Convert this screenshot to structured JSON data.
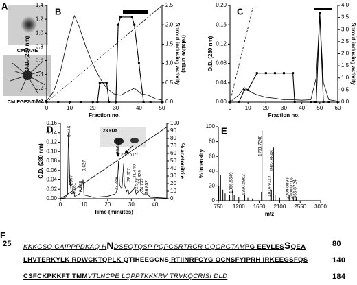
{
  "panel_a": {
    "label": "A",
    "captions": [
      "CM MAE",
      "CM FGF2-T-MAE"
    ]
  },
  "chart_data": [
    {
      "type": "line",
      "panel": "B",
      "xlabel": "Fraction no.",
      "ylabel": "O.D. (280 nm)",
      "y2label": [
        "Sprout inducing activity",
        "(relative units)"
      ],
      "xlim": [
        0,
        50
      ],
      "xticks": [
        0,
        10,
        20,
        30,
        40,
        50
      ],
      "ylim": [
        0,
        1.4
      ],
      "yticks": [
        {
          "value": 0,
          "label": "0.0"
        },
        0.2,
        0.4,
        0.6,
        0.8,
        {
          "value": 1,
          "label": "1.0"
        },
        1.2,
        1.4
      ],
      "y2lim": [
        0,
        2.5
      ],
      "y2ticks": [
        {
          "value": 0,
          "label": "0.0"
        },
        0.5,
        {
          "value": 1,
          "label": "1.0"
        },
        1.5,
        {
          "value": 2,
          "label": "2.0"
        },
        2.5
      ],
      "series": [
        {
          "x": [
            0,
            3,
            6,
            9,
            12,
            14,
            17,
            20,
            23,
            26,
            29,
            32,
            35,
            38,
            41,
            44,
            47,
            50
          ],
          "values": [
            0.02,
            0.15,
            0.45,
            0.9,
            1.25,
            1.1,
            0.8,
            0.55,
            0.35,
            0.2,
            0.12,
            0.1,
            0.15,
            0.2,
            0.12,
            0.1,
            0.05,
            0.03
          ],
          "color": "#000000"
        },
        {
          "x": [
            0,
            50
          ],
          "values": [
            0,
            2.5
          ],
          "axis": "y2",
          "dash": true,
          "color": "#000000"
        },
        {
          "x": [
            0,
            5,
            10,
            15,
            20,
            22,
            23,
            26,
            27,
            30,
            31,
            32,
            37,
            38,
            40,
            42,
            45,
            50
          ],
          "values": [
            0,
            0,
            0,
            0,
            0,
            0,
            0.5,
            0.5,
            0,
            0,
            2.0,
            2.2,
            2.2,
            2.0,
            1.0,
            0,
            0,
            0
          ],
          "axis": "y2",
          "markers": true,
          "color": "#000000"
        }
      ]
    },
    {
      "type": "line",
      "panel": "C",
      "xlabel": "Fraction no.",
      "ylabel": "O.D. (280 nm)",
      "y2label": [
        "Sprout inducing activity",
        "(relative units)"
      ],
      "xlim": [
        0,
        60
      ],
      "xticks": [
        0,
        10,
        20,
        30,
        40,
        50,
        60
      ],
      "ylim": [
        0,
        0.2
      ],
      "yticks": [
        {
          "value": 0,
          "label": "0.00"
        },
        0.04,
        0.08,
        0.12,
        0.16,
        {
          "value": 0.2,
          "label": "0.20"
        }
      ],
      "y2lim": [
        0,
        4
      ],
      "y2ticks": [
        {
          "value": 0,
          "label": "0.0"
        },
        0.5,
        {
          "value": 1,
          "label": "1.0"
        },
        1.5,
        {
          "value": 2,
          "label": "2.0"
        },
        2.5,
        {
          "value": 3,
          "label": "3.0"
        },
        3.5,
        {
          "value": 4,
          "label": "4.0"
        }
      ],
      "series": [
        {
          "x": [
            0,
            5,
            8,
            10,
            12,
            15,
            20,
            25,
            30,
            35,
            40,
            45,
            48,
            50,
            52,
            55,
            60
          ],
          "values": [
            0,
            0.015,
            0.03,
            0.025,
            0.02,
            0.015,
            0.01,
            0.008,
            0.005,
            0.005,
            0.004,
            0.005,
            0.05,
            0.18,
            0.04,
            0.005,
            0.002
          ],
          "color": "#000000"
        },
        {
          "x": [
            0,
            13
          ],
          "values": [
            0,
            4
          ],
          "axis": "y2",
          "dash": true,
          "color": "#000000"
        },
        {
          "x": [
            0,
            5,
            8,
            10,
            15,
            20,
            25,
            30,
            35,
            36,
            45,
            47,
            48,
            50,
            52,
            55,
            60
          ],
          "values": [
            0,
            0,
            0.5,
            0.5,
            1.2,
            1.2,
            1.2,
            1.2,
            1.2,
            0,
            0,
            0,
            0,
            3.7,
            0,
            0,
            0
          ],
          "axis": "y2",
          "markers": true,
          "color": "#000000"
        }
      ]
    },
    {
      "type": "line",
      "panel": "D",
      "xlabel": "Time (minutes)",
      "ylabel": "O.D. (280 nm)",
      "y2label": [
        "% acetonitrile"
      ],
      "xlim": [
        0,
        45
      ],
      "xticks": [
        0,
        10,
        20,
        30,
        40
      ],
      "ylim": [
        0,
        0.16
      ],
      "yticks": [
        {
          "value": 0,
          "label": "0.00"
        },
        0.02,
        0.04,
        0.06,
        0.08,
        {
          "value": 0.1,
          "label": "0.10"
        },
        0.12,
        0.14,
        0.16
      ],
      "y2lim": [
        0,
        100
      ],
      "y2ticks": [
        0,
        10,
        20,
        30,
        40,
        50,
        60,
        70,
        80,
        90,
        100
      ],
      "inset_label": "28 kDa",
      "annotations": [
        "3.446",
        "4.097",
        "5.681",
        "8.838",
        "9.627",
        "23.748",
        "24.640",
        "26.751**",
        "28.657",
        "31.440",
        "32.538",
        "33.929",
        "34.732",
        "36.852"
      ],
      "series": [
        {
          "x": [
            0,
            2,
            3,
            3.4,
            4,
            4.1,
            4.6,
            5.7,
            6,
            8,
            8.8,
            9.6,
            10,
            14,
            20,
            23,
            23.7,
            24,
            24.6,
            25,
            26,
            26.75,
            27,
            28,
            28.6,
            29,
            30,
            31,
            31.4,
            32,
            33.9,
            34,
            35,
            36.8,
            38,
            45
          ],
          "values": [
            0,
            0.002,
            0.01,
            0.14,
            0.03,
            0.04,
            0.01,
            0.015,
            0.005,
            0.01,
            0.02,
            0.04,
            0.008,
            0.003,
            0.005,
            0.01,
            0.015,
            0.02,
            0.08,
            0.03,
            0.02,
            0.075,
            0.03,
            0.015,
            0.02,
            0.01,
            0.015,
            0.02,
            0.025,
            0.01,
            0.02,
            0.015,
            0.01,
            0.01,
            0.003,
            0.001
          ],
          "color": "#000000"
        },
        {
          "x": [
            0,
            5,
            45
          ],
          "values": [
            0,
            10,
            95
          ],
          "axis": "y2",
          "color": "#000000"
        }
      ]
    },
    {
      "type": "stem",
      "panel": "E",
      "xlabel": "m/z",
      "ylabel": "% Intensity",
      "xlim": [
        750,
        3000
      ],
      "xticks": [
        750,
        1200,
        1650,
        2100,
        2550,
        3000
      ],
      "ylim": [
        0,
        100
      ],
      "yticks": [
        0,
        20,
        40,
        60,
        80,
        100
      ],
      "annotations": [
        "1711.7248",
        "1963.8848",
        "1066.5549",
        "1330.5862",
        "1916.9113",
        "2309.0893",
        "2400.0716",
        "2466.8724"
      ],
      "series": [
        {
          "x": [
            760,
            800,
            850,
            900,
            1000,
            1066.5,
            1100,
            1200,
            1330.6,
            1400,
            1500,
            1697.8,
            1711.7,
            1800,
            1916.9,
            1963.9,
            2000,
            2100,
            2309,
            2400,
            2467
          ],
          "values": [
            20,
            35,
            15,
            10,
            8,
            15,
            8,
            5,
            8,
            4,
            3,
            12,
            95,
            10,
            15,
            72,
            8,
            4,
            8,
            6,
            5
          ],
          "color": "#000000"
        }
      ]
    }
  ],
  "sequence": {
    "label": "F",
    "lines": [
      {
        "start": "25",
        "end": "80",
        "segments": [
          {
            "text": "KKKGSQ GAIPPPDKAQ H",
            "style": "italic-underline"
          },
          {
            "text": "N",
            "style": "big"
          },
          {
            "text": "DSEQTQSP PQPGSRTRGR GQGRGTAM",
            "style": "italic-underline"
          },
          {
            "text": "PG EEVLES",
            "style": "bold-underline"
          },
          {
            "text": "S",
            "style": "big"
          },
          {
            "text": "QEA",
            "style": "bold-underline"
          }
        ]
      },
      {
        "start": "",
        "end": "140",
        "segments": [
          {
            "text": "LHVTERKYLK RDWCKTQPLK ",
            "style": "bold-underline"
          },
          {
            "text": "QTIHEEGCNS",
            "style": "bold"
          },
          {
            "text": " RTIINRFCYG QCNSFYIPRH IRKEEGSFQS",
            "style": "bold-underline"
          }
        ]
      },
      {
        "start": "",
        "end": "184",
        "segments": [
          {
            "text": "CSFCKPKKFT TMM",
            "style": "bold-underline"
          },
          {
            "text": "VTLNCPE LQPPTKKKRV TRVKQCRISI DLD",
            "style": "italic-underline"
          }
        ]
      }
    ]
  }
}
